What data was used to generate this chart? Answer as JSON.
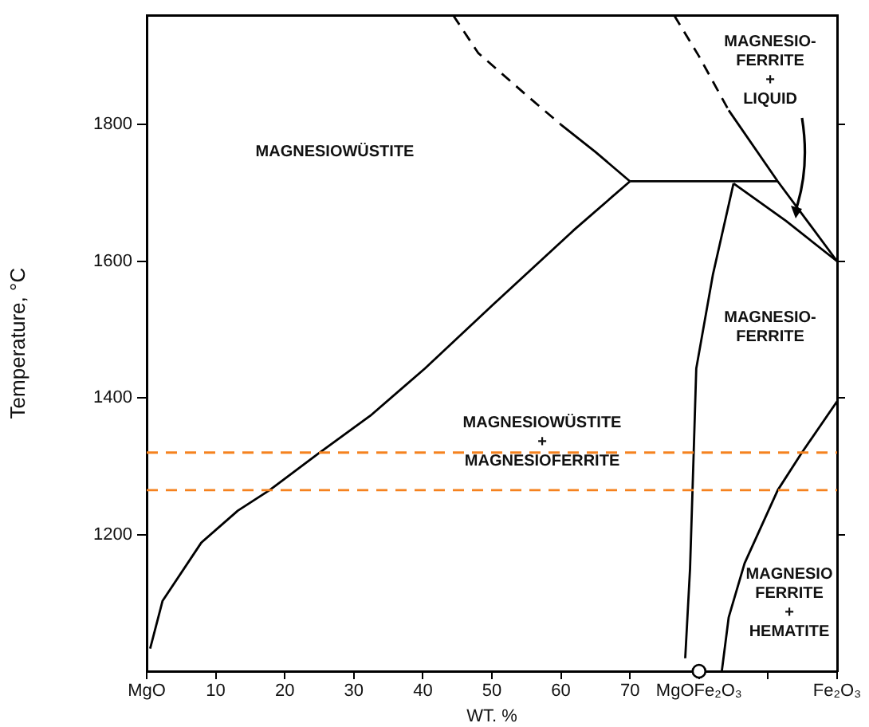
{
  "chart_data": {
    "type": "line",
    "xlabel": "WT. %",
    "ylabel": "Temperature, °C",
    "xlim": [
      0,
      100
    ],
    "ylim": [
      1000,
      1960
    ],
    "xticks": [
      {
        "value": 0,
        "label": "MgO"
      },
      10,
      20,
      30,
      40,
      50,
      60,
      70,
      {
        "value": 80,
        "label": "MgOFe₂O₃"
      },
      {
        "value": 90,
        "label": null
      },
      {
        "value": 100,
        "label": "Fe₂O₃"
      }
    ],
    "yticks": [
      1200,
      1400,
      1600,
      1800
    ],
    "grid": false,
    "legend": false,
    "marker": "none",
    "series": [
      {
        "color": "#000000",
        "line_style": "solid",
        "x": [
          0.5,
          2.3,
          7.9,
          13.2,
          17.8,
          24.8,
          32.4,
          40.3,
          50,
          61.8,
          70
        ],
        "values": [
          1033,
          1103,
          1188,
          1235,
          1265,
          1318,
          1374,
          1443,
          1535,
          1645,
          1717
        ]
      },
      {
        "color": "#000000",
        "line_style": "dashed",
        "x": [
          44.4,
          48,
          54.9,
          60
        ],
        "values": [
          1960,
          1905,
          1844,
          1800
        ]
      },
      {
        "color": "#000000",
        "line_style": "solid",
        "x": [
          60,
          65,
          70
        ],
        "values": [
          1800,
          1760,
          1717
        ]
      },
      {
        "color": "#000000",
        "line_style": "solid",
        "x": [
          70,
          91.4
        ],
        "values": [
          1717,
          1717
        ]
      },
      {
        "color": "#000000",
        "line_style": "dashed",
        "x": [
          76.4,
          80,
          84.3
        ],
        "values": [
          1960,
          1900,
          1821
        ]
      },
      {
        "color": "#000000",
        "line_style": "solid",
        "x": [
          84.3,
          91.4,
          100
        ],
        "values": [
          1821,
          1717,
          1600
        ]
      },
      {
        "color": "#000000",
        "line_style": "solid",
        "x": [
          85,
          92.6,
          100
        ],
        "values": [
          1714,
          1659,
          1600
        ]
      },
      {
        "color": "#000000",
        "line_style": "solid",
        "x": [
          85,
          82,
          79.6,
          79.2,
          78.7,
          78
        ],
        "values": [
          1714,
          1580,
          1443,
          1311,
          1150,
          1019
        ]
      },
      {
        "color": "#000000",
        "line_style": "solid",
        "x": [
          100,
          94.9,
          91.4,
          86.6,
          84.3,
          83.3
        ],
        "values": [
          1395,
          1320,
          1265,
          1158,
          1079,
          1000
        ]
      },
      {
        "type": "scatter",
        "color": "#000000",
        "marker": "circle",
        "x": [
          80
        ],
        "values": [
          1000
        ]
      }
    ],
    "ref_lines": [
      {
        "axis": "y",
        "value": 1265,
        "color": "#f5821f",
        "line_style": "dashed"
      },
      {
        "axis": "y",
        "value": 1320,
        "color": "#f5821f",
        "line_style": "dashed"
      }
    ],
    "annotations": [
      "MAGNESIOWÜSTITE",
      "MAGNESIOWÜSTITE\n+\nMAGNESIOFERRITE",
      "MAGNESIO-\nFERRITE\n+\nLIQUID",
      "MAGNESIO-\nFERRITE",
      "MAGNESIO\nFERRITE\n+\nHEMATITE"
    ]
  }
}
